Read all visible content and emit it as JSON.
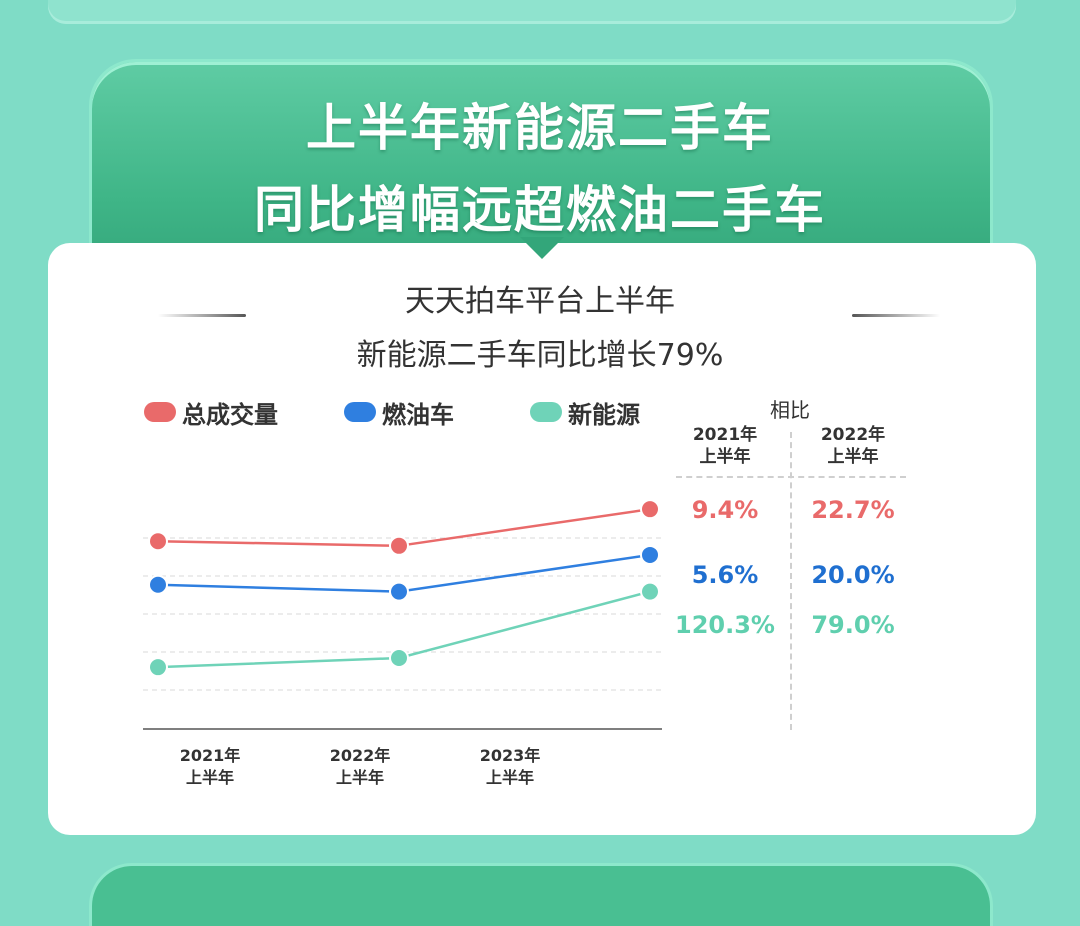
{
  "header": {
    "title_line1": "上半年新能源二手车",
    "title_line2": "同比增幅远超燃油二手车"
  },
  "subtitle": {
    "line1": "天天拍车平台上半年",
    "line2": "新能源二手车同比增长79%"
  },
  "colors": {
    "total": "#e96a6a",
    "fuel": "#2f7fe0",
    "nev": "#6fd3b8"
  },
  "comparison": {
    "heading": "相比",
    "columns": [
      {
        "line1": "2021年",
        "line2": "上半年"
      },
      {
        "line1": "2022年",
        "line2": "上半年"
      }
    ],
    "rows": [
      {
        "series": "总成交量",
        "v2021": "9.4%",
        "v2022": "22.7%"
      },
      {
        "series": "燃油车",
        "v2021": "5.6%",
        "v2022": "20.0%"
      },
      {
        "series": "新能源",
        "v2021": "120.3%",
        "v2022": "79.0%"
      }
    ]
  },
  "chart_data": {
    "type": "line",
    "categories": [
      "2021年上半年",
      "2022年上半年",
      "2023年上半年"
    ],
    "x_tick_labels": [
      {
        "line1": "2021年",
        "line2": "上半年"
      },
      {
        "line1": "2022年",
        "line2": "上半年"
      },
      {
        "line1": "2023年",
        "line2": "上半年"
      }
    ],
    "series": [
      {
        "name": "总成交量",
        "values": [
          0.82,
          0.8,
          0.96
        ]
      },
      {
        "name": "燃油车",
        "values": [
          0.63,
          0.6,
          0.76
        ]
      },
      {
        "name": "新能源",
        "values": [
          0.27,
          0.31,
          0.6
        ]
      }
    ],
    "ylim": [
      0,
      1
    ],
    "legend_position": "top-left",
    "grid": true
  }
}
